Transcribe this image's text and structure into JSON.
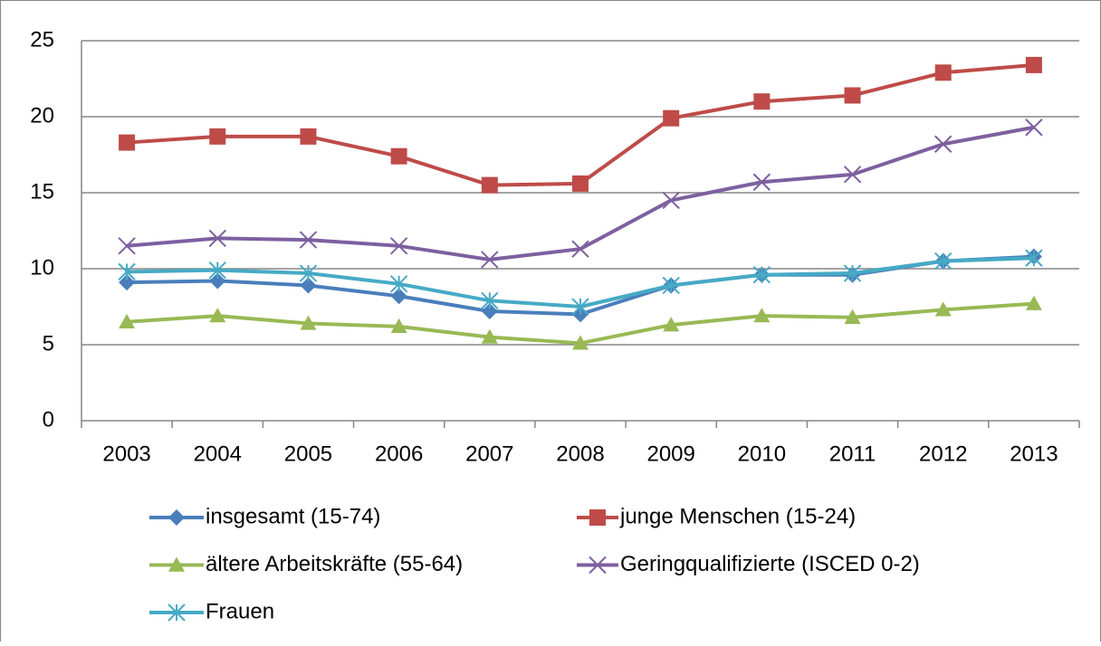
{
  "chart_data": {
    "type": "line",
    "categories": [
      "2003",
      "2004",
      "2005",
      "2006",
      "2007",
      "2008",
      "2009",
      "2010",
      "2011",
      "2012",
      "2013"
    ],
    "series": [
      {
        "name": "insgesamt (15-74)",
        "color": "#4a7ebb",
        "marker": "diamond",
        "values": [
          9.1,
          9.2,
          8.9,
          8.2,
          7.2,
          7.0,
          8.9,
          9.6,
          9.6,
          10.5,
          10.8
        ]
      },
      {
        "name": "junge Menschen (15-24)",
        "color": "#be4b48",
        "marker": "square",
        "values": [
          18.3,
          18.7,
          18.7,
          17.4,
          15.5,
          15.6,
          19.9,
          21.0,
          21.4,
          22.9,
          23.4
        ]
      },
      {
        "name": "ältere Arbeitskräfte (55-64)",
        "color": "#98b954",
        "marker": "triangle",
        "values": [
          6.5,
          6.9,
          6.4,
          6.2,
          5.5,
          5.1,
          6.3,
          6.9,
          6.8,
          7.3,
          7.7
        ]
      },
      {
        "name": "Geringqualifizierte (ISCED 0-2)",
        "color": "#7d60a0",
        "marker": "x",
        "values": [
          11.5,
          12.0,
          11.9,
          11.5,
          10.6,
          11.3,
          14.5,
          15.7,
          16.2,
          18.2,
          19.3
        ]
      },
      {
        "name": "Frauen",
        "color": "#46aac5",
        "marker": "star",
        "values": [
          9.8,
          9.9,
          9.7,
          9.0,
          7.9,
          7.5,
          8.9,
          9.6,
          9.7,
          10.5,
          10.7
        ]
      }
    ],
    "ylim": [
      0,
      25
    ],
    "yticks": [
      0,
      5,
      10,
      15,
      20,
      25
    ],
    "grid": true
  }
}
